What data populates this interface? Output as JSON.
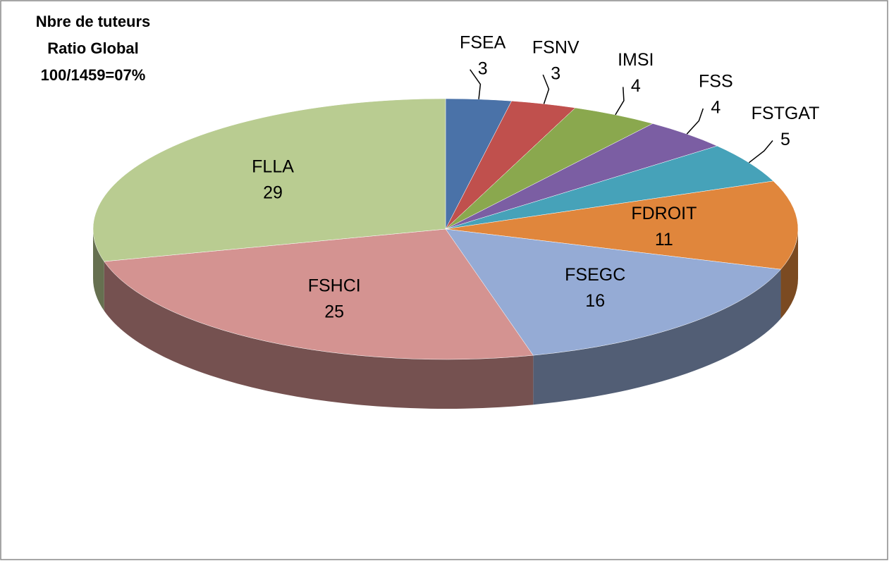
{
  "chart_data": {
    "type": "pie",
    "title": [
      "Nbre de tuteurs",
      "Ratio Global",
      "100/1459=07%"
    ],
    "categories": [
      "FSEA",
      "FSNV",
      "IMSI",
      "FSS",
      "FSTGAT",
      "FDROIT",
      "FSEGC",
      "FSHCI",
      "FLLA"
    ],
    "values": [
      3,
      3,
      4,
      4,
      5,
      11,
      16,
      25,
      29
    ],
    "colors": [
      "#4a72a8",
      "#c0504d",
      "#8aa84e",
      "#7b5ea3",
      "#46a2b9",
      "#e0863c",
      "#95abd5",
      "#d49391",
      "#b9cc91"
    ]
  }
}
